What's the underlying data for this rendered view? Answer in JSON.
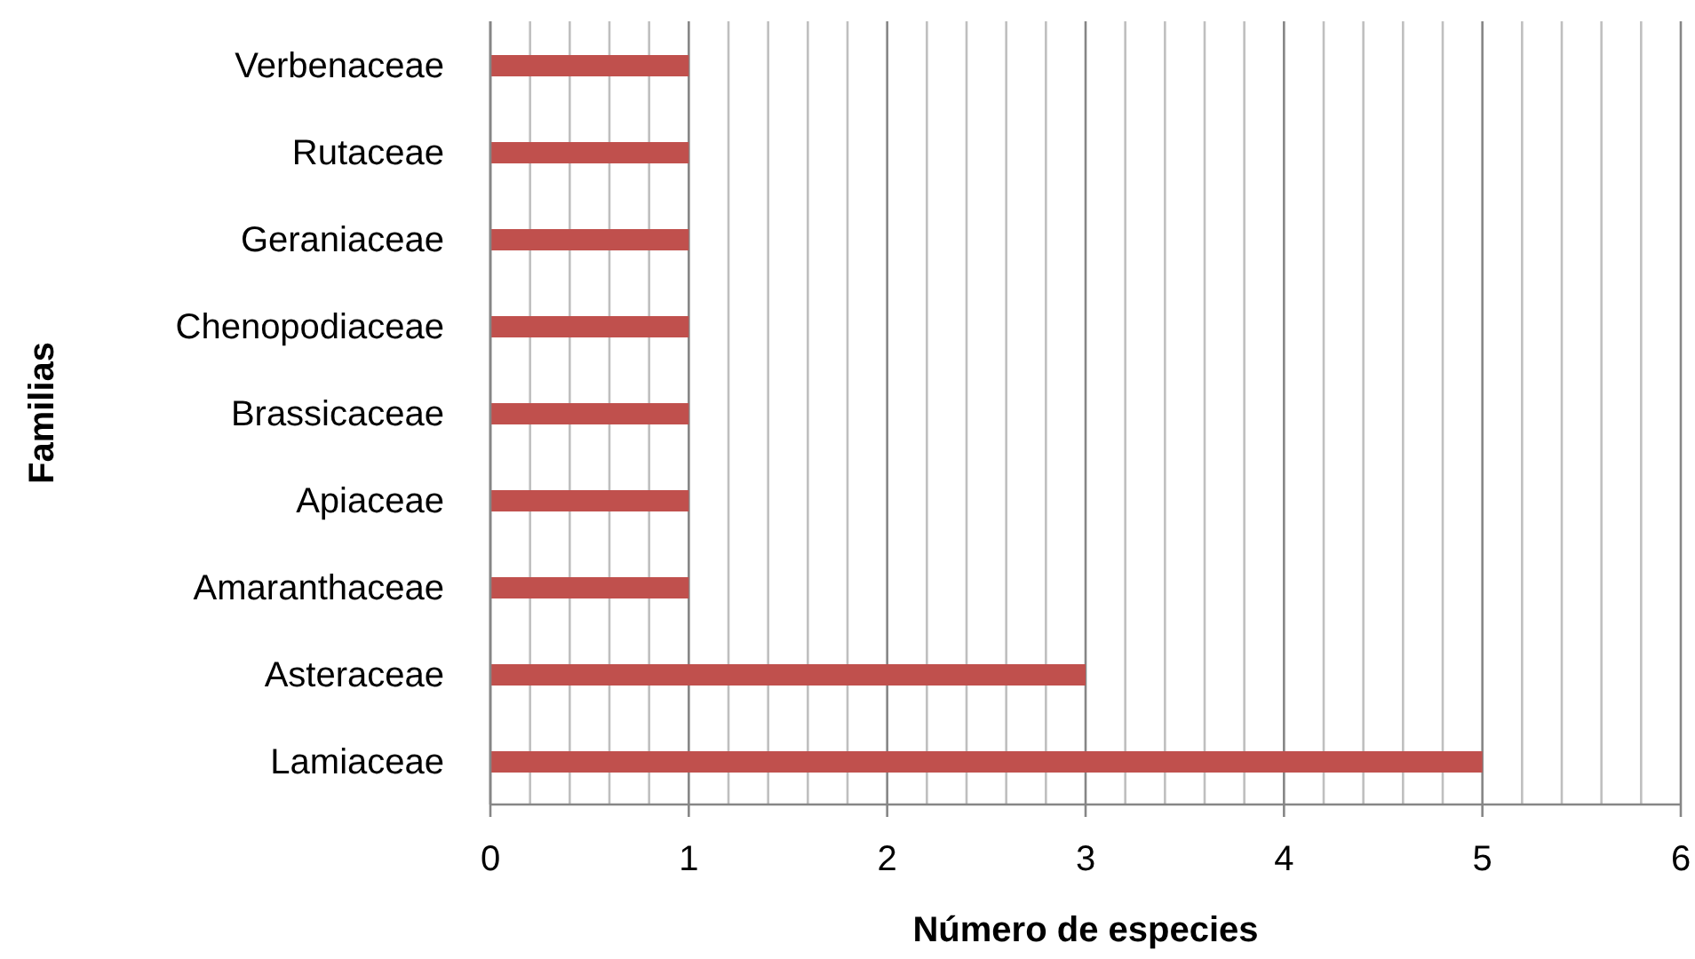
{
  "chart_data": {
    "type": "bar",
    "orientation": "horizontal",
    "xlabel": "Número de especies",
    "ylabel": "Familias",
    "categories": [
      "Verbenaceae",
      "Rutaceae",
      "Geraniaceae",
      "Chenopodiaceae",
      "Brassicaceae",
      "Apiaceae",
      "Amaranthaceae",
      "Asteraceae",
      "Lamiaceae"
    ],
    "values": [
      1,
      1,
      1,
      1,
      1,
      1,
      1,
      3,
      5
    ],
    "color": "#c0504d",
    "xlim": [
      0,
      6
    ],
    "xticks": [
      0,
      {
        "value": 0.2,
        "label": null
      },
      {
        "value": 0.4,
        "label": null
      },
      {
        "value": 0.6,
        "label": null
      },
      {
        "value": 0.8,
        "label": null
      },
      1,
      {
        "value": 1.2,
        "label": null
      },
      {
        "value": 1.4,
        "label": null
      },
      {
        "value": 1.6,
        "label": null
      },
      {
        "value": 1.8,
        "label": null
      },
      2,
      {
        "value": 2.2,
        "label": null
      },
      {
        "value": 2.4,
        "label": null
      },
      {
        "value": 2.6,
        "label": null
      },
      {
        "value": 2.8,
        "label": null
      },
      3,
      {
        "value": 3.2,
        "label": null
      },
      {
        "value": 3.4,
        "label": null
      },
      {
        "value": 3.6,
        "label": null
      },
      {
        "value": 3.8,
        "label": null
      },
      4,
      {
        "value": 4.2,
        "label": null
      },
      {
        "value": 4.4,
        "label": null
      },
      {
        "value": 4.6,
        "label": null
      },
      {
        "value": 4.8,
        "label": null
      },
      5,
      {
        "value": 5.2,
        "label": null
      },
      {
        "value": 5.4,
        "label": null
      },
      {
        "value": 5.6,
        "label": null
      },
      {
        "value": 5.8,
        "label": null
      },
      6
    ],
    "grid": "x"
  }
}
